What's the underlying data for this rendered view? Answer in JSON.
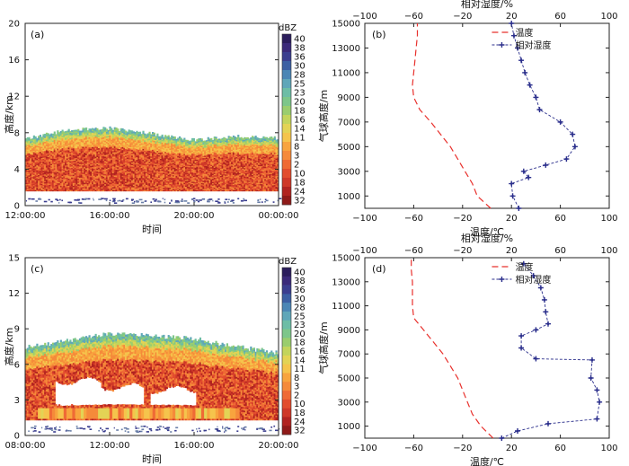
{
  "chart_data": [
    {
      "panel": "(a)",
      "type": "heatmap",
      "xlabel": "时间",
      "ylabel": "高度/km",
      "x_ticks": [
        "12:00:00",
        "16:00:00",
        "20:00:00",
        "00:00:00"
      ],
      "y_ticks": [
        "0",
        "4",
        "8",
        "12",
        "16",
        "20"
      ],
      "ylim": [
        0,
        20
      ],
      "x_range_hours": [
        12,
        24
      ],
      "colorbar_unit": "dBZ",
      "colorbar_labels": [
        "40",
        "38",
        "36",
        "30",
        "28",
        "25",
        "23",
        "20",
        "18",
        "16",
        "14",
        "11",
        "8",
        "3",
        "2",
        "10",
        "18",
        "24",
        "32"
      ],
      "echo_top_km": [
        [
          12.0,
          7.3
        ],
        [
          14.0,
          8.3
        ],
        [
          16.0,
          8.5
        ],
        [
          18.0,
          7.9
        ],
        [
          20.0,
          7.2
        ],
        [
          22.0,
          7.6
        ],
        [
          24.0,
          7.4
        ]
      ],
      "core_top_km": [
        [
          13.0,
          5.8
        ],
        [
          16.0,
          6.7
        ],
        [
          19.0,
          5.5
        ],
        [
          22.0,
          5.0
        ],
        [
          24.0,
          4.8
        ]
      ]
    },
    {
      "panel": "(b)",
      "type": "line",
      "ylabel": "气球高度/m",
      "xlabel_bottom": "温度/℃",
      "xlabel_top": "相对湿度/%",
      "x_ticks_bottom": [
        "−100",
        "−60",
        "−20",
        "20",
        "60",
        "100"
      ],
      "x_ticks_top": [
        "−100",
        "−60",
        "−20",
        "20",
        "60",
        "100"
      ],
      "y_ticks": [
        "1000",
        "3000",
        "5000",
        "7000",
        "9000",
        "11000",
        "13000",
        "15000"
      ],
      "xlim": [
        -100,
        100
      ],
      "ylim": [
        0,
        15000
      ],
      "legend": [
        "温度",
        "相对湿度"
      ],
      "series": [
        {
          "name": "温度",
          "color": "#e8302c",
          "dash": true,
          "points": [
            [
              3,
              0
            ],
            [
              -8,
              1000
            ],
            [
              -12,
              2000
            ],
            [
              -18,
              3000
            ],
            [
              -24,
              4000
            ],
            [
              -30,
              5000
            ],
            [
              -38,
              6000
            ],
            [
              -46,
              7000
            ],
            [
              -55,
              8000
            ],
            [
              -60,
              9000
            ],
            [
              -61,
              10000
            ],
            [
              -60,
              11000
            ],
            [
              -59,
              12000
            ],
            [
              -58,
              13000
            ],
            [
              -57,
              14000
            ],
            [
              -57,
              15000
            ]
          ]
        },
        {
          "name": "相对湿度",
          "color": "#2b2f8c",
          "dash": true,
          "points": [
            [
              26,
              0
            ],
            [
              21,
              1000
            ],
            [
              20,
              2000
            ],
            [
              34,
              2500
            ],
            [
              30,
              3000
            ],
            [
              48,
              3500
            ],
            [
              65,
              4000
            ],
            [
              72,
              5000
            ],
            [
              70,
              6000
            ],
            [
              60,
              7000
            ],
            [
              43,
              8000
            ],
            [
              40,
              9000
            ],
            [
              35,
              10000
            ],
            [
              31,
              11000
            ],
            [
              28,
              12000
            ],
            [
              25,
              13000
            ],
            [
              22,
              14000
            ],
            [
              20,
              15000
            ]
          ]
        }
      ]
    },
    {
      "panel": "(c)",
      "type": "heatmap",
      "xlabel": "时间",
      "ylabel": "高度/km",
      "x_ticks": [
        "08:00:00",
        "12:00:00",
        "16:00:00",
        "20:00:00"
      ],
      "y_ticks": [
        "0",
        "3",
        "6",
        "9",
        "12",
        "15"
      ],
      "ylim": [
        0,
        15
      ],
      "x_range_hours": [
        8,
        20
      ],
      "colorbar_unit": "dBZ",
      "colorbar_labels": [
        "40",
        "38",
        "36",
        "30",
        "28",
        "25",
        "23",
        "20",
        "18",
        "16",
        "14",
        "11",
        "8",
        "3",
        "2",
        "10",
        "18",
        "24",
        "32"
      ],
      "echo_top_km": [
        [
          8.0,
          7.4
        ],
        [
          10.0,
          8.0
        ],
        [
          12.0,
          8.6
        ],
        [
          14.0,
          8.4
        ],
        [
          16.0,
          8.2
        ],
        [
          17.5,
          7.6
        ],
        [
          20.0,
          7.0
        ]
      ],
      "clear_gap_km": [
        [
          10.5,
          2.5,
          4.5
        ],
        [
          12.5,
          2.5,
          4.0
        ],
        [
          15.0,
          2.5,
          3.8
        ]
      ]
    },
    {
      "panel": "(d)",
      "type": "line",
      "ylabel": "气球高度/m",
      "xlabel_bottom": "温度/℃",
      "xlabel_top": "相对湿度/%",
      "x_ticks_bottom": [
        "−100",
        "−60",
        "−20",
        "20",
        "60",
        "100"
      ],
      "x_ticks_top": [
        "−100",
        "−60",
        "−20",
        "20",
        "60",
        "100"
      ],
      "y_ticks": [
        "1000",
        "3000",
        "5000",
        "7000",
        "9000",
        "11000",
        "13000",
        "15000"
      ],
      "xlim": [
        -100,
        100
      ],
      "ylim": [
        0,
        15000
      ],
      "legend": [
        "温度",
        "相对湿度"
      ],
      "series": [
        {
          "name": "温度",
          "color": "#e8302c",
          "dash": true,
          "points": [
            [
              5,
              0
            ],
            [
              -5,
              1000
            ],
            [
              -12,
              2000
            ],
            [
              -16,
              3000
            ],
            [
              -20,
              4000
            ],
            [
              -24,
              5000
            ],
            [
              -30,
              6000
            ],
            [
              -36,
              7000
            ],
            [
              -44,
              8000
            ],
            [
              -52,
              9000
            ],
            [
              -60,
              10000
            ],
            [
              -61,
              11000
            ],
            [
              -61,
              12000
            ],
            [
              -61,
              13000
            ],
            [
              -62,
              14000
            ],
            [
              -62,
              15000
            ]
          ]
        },
        {
          "name": "相对湿度",
          "color": "#2b2f8c",
          "dash": true,
          "points": [
            [
              12,
              0
            ],
            [
              25,
              600
            ],
            [
              50,
              1200
            ],
            [
              90,
              1600
            ],
            [
              92,
              3000
            ],
            [
              90,
              4000
            ],
            [
              85,
              5000
            ],
            [
              86,
              6500
            ],
            [
              40,
              6600
            ],
            [
              28,
              7500
            ],
            [
              28,
              8500
            ],
            [
              40,
              9000
            ],
            [
              50,
              9500
            ],
            [
              48,
              10500
            ],
            [
              47,
              11500
            ],
            [
              44,
              12500
            ],
            [
              38,
              13500
            ],
            [
              30,
              14500
            ]
          ]
        }
      ]
    }
  ]
}
